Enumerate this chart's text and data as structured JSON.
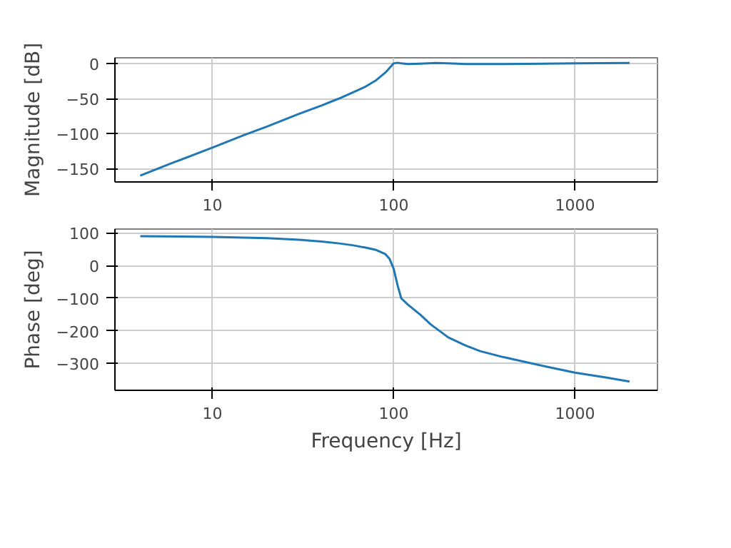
{
  "chart_data": [
    {
      "type": "line",
      "ylabel": "Magnitude [dB]",
      "log": "x",
      "grid": true,
      "xlim": [
        2.9,
        2850
      ],
      "xticks": [
        10,
        100,
        1000
      ],
      "ylim": [
        -169,
        8
      ],
      "yticks": [
        -150,
        -100,
        -50,
        0
      ],
      "x": [
        4,
        6,
        10,
        15,
        20,
        30,
        40,
        50,
        60,
        70,
        80,
        90,
        100,
        105,
        110,
        120,
        140,
        170,
        200,
        250,
        400,
        1000,
        2000
      ],
      "series": [
        {
          "color": "#1f77b4",
          "values": [
            -160,
            -142,
            -120,
            -102,
            -90,
            -72,
            -60,
            -50,
            -41,
            -33,
            -24,
            -13,
            0,
            1,
            0,
            -1,
            -0.5,
            0.5,
            0,
            -1,
            -1,
            0,
            0.5
          ]
        }
      ]
    },
    {
      "type": "line",
      "ylabel": "Phase [deg]",
      "xlabel": "Frequency [Hz]",
      "log": "x",
      "grid": true,
      "xlim": [
        2.9,
        2850
      ],
      "xticks": [
        10,
        100,
        1000
      ],
      "ylim": [
        -382,
        112
      ],
      "yticks": [
        -300,
        -200,
        -100,
        0,
        100
      ],
      "x": [
        4,
        10,
        20,
        30,
        40,
        50,
        60,
        70,
        80,
        90,
        95,
        100,
        105,
        110,
        120,
        140,
        160,
        200,
        250,
        300,
        400,
        500,
        700,
        1000,
        1500,
        2000
      ],
      "series": [
        {
          "color": "#1f77b4",
          "values": [
            90,
            88,
            84,
            79,
            74,
            68,
            62,
            55,
            48,
            35,
            20,
            -10,
            -60,
            -100,
            -120,
            -150,
            -180,
            -220,
            -245,
            -262,
            -280,
            -292,
            -310,
            -328,
            -343,
            -355
          ]
        }
      ]
    }
  ]
}
